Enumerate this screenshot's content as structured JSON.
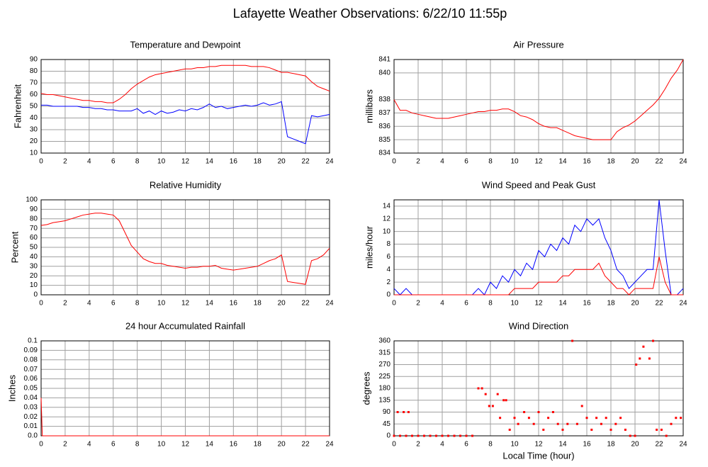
{
  "title": "Lafayette Weather Observations: 6/22/10 11:55p",
  "chart_data": [
    {
      "type": "line",
      "title": "Temperature and Dewpoint",
      "ylabel": "Fahrenheit",
      "xlim": [
        0,
        24
      ],
      "xticks": [
        0,
        2,
        4,
        6,
        8,
        10,
        12,
        14,
        16,
        18,
        20,
        22,
        24
      ],
      "ylim": [
        10,
        90
      ],
      "yticks": [
        10,
        20,
        30,
        40,
        50,
        60,
        70,
        80,
        90
      ],
      "grid": true,
      "x": [
        0,
        0.5,
        1,
        1.5,
        2,
        2.5,
        3,
        3.5,
        4,
        4.5,
        5,
        5.5,
        6,
        6.5,
        7,
        7.5,
        8,
        8.5,
        9,
        9.5,
        10,
        10.5,
        11,
        11.5,
        12,
        12.5,
        13,
        13.5,
        14,
        14.5,
        15,
        15.5,
        16,
        16.5,
        17,
        17.5,
        18,
        18.5,
        19,
        19.5,
        20,
        20.5,
        21,
        21.5,
        22,
        22.5,
        23,
        23.5,
        24
      ],
      "series": [
        {
          "color": "#ff0000",
          "values": [
            61,
            60,
            60,
            59,
            58,
            57,
            56,
            55,
            55,
            54,
            54,
            53,
            53,
            56,
            60,
            65,
            69,
            72,
            75,
            77,
            78,
            79,
            80,
            81,
            82,
            82,
            83,
            83,
            84,
            84,
            85,
            85,
            85,
            85,
            85,
            84,
            84,
            84,
            83,
            81,
            79,
            79,
            78,
            77,
            76,
            71,
            67,
            65,
            63
          ]
        },
        {
          "color": "#0000ff",
          "values": [
            51,
            51,
            50,
            50,
            50,
            50,
            50,
            49,
            49,
            48,
            48,
            47,
            47,
            46,
            46,
            46,
            48,
            44,
            46,
            43,
            46,
            44,
            45,
            47,
            46,
            48,
            47,
            49,
            52,
            49,
            50,
            48,
            49,
            50,
            51,
            50,
            51,
            53,
            51,
            52,
            54,
            24,
            22,
            20,
            18,
            42,
            41,
            42,
            43
          ]
        }
      ]
    },
    {
      "type": "line",
      "title": "Air Pressure",
      "ylabel": "millibars",
      "xlim": [
        0,
        24
      ],
      "xticks": [
        0,
        2,
        4,
        6,
        8,
        10,
        12,
        14,
        16,
        18,
        20,
        22,
        24
      ],
      "ylim": [
        834,
        841
      ],
      "yticks": [
        834,
        835,
        836,
        837,
        838,
        840,
        841
      ],
      "grid": true,
      "x": [
        0,
        0.5,
        1,
        1.5,
        2,
        2.5,
        3,
        3.5,
        4,
        4.5,
        5,
        5.5,
        6,
        6.5,
        7,
        7.5,
        8,
        8.5,
        9,
        9.5,
        10,
        10.5,
        11,
        11.5,
        12,
        12.5,
        13,
        13.5,
        14,
        14.5,
        15,
        15.5,
        16,
        16.5,
        17,
        17.5,
        18,
        18.5,
        19,
        19.5,
        20,
        20.5,
        21,
        21.5,
        22,
        22.5,
        23,
        23.5,
        24
      ],
      "series": [
        {
          "color": "#ff0000",
          "values": [
            838,
            837.2,
            837.2,
            837,
            836.9,
            836.8,
            836.7,
            836.6,
            836.6,
            836.6,
            836.7,
            836.8,
            836.9,
            837,
            837.1,
            837.1,
            837.2,
            837.2,
            837.3,
            837.3,
            837.1,
            836.8,
            836.7,
            836.5,
            836.2,
            836,
            835.9,
            835.9,
            835.7,
            835.5,
            835.3,
            835.2,
            835.1,
            835,
            835,
            835,
            835,
            835.6,
            835.9,
            836.1,
            836.4,
            836.8,
            837.2,
            837.6,
            838.1,
            838.8,
            839.6,
            840.2,
            841
          ]
        }
      ]
    },
    {
      "type": "line",
      "title": "Relative Humidity",
      "ylabel": "Percent",
      "xlim": [
        0,
        24
      ],
      "xticks": [
        0,
        2,
        4,
        6,
        8,
        10,
        12,
        14,
        16,
        18,
        20,
        22,
        24
      ],
      "ylim": [
        0,
        100
      ],
      "yticks": [
        0,
        10,
        20,
        30,
        40,
        50,
        60,
        70,
        80,
        90,
        100
      ],
      "grid": true,
      "x": [
        0,
        0.5,
        1,
        1.5,
        2,
        2.5,
        3,
        3.5,
        4,
        4.5,
        5,
        5.5,
        6,
        6.5,
        7,
        7.5,
        8,
        8.5,
        9,
        9.5,
        10,
        10.5,
        11,
        11.5,
        12,
        12.5,
        13,
        13.5,
        14,
        14.5,
        15,
        15.5,
        16,
        16.5,
        17,
        17.5,
        18,
        18.5,
        19,
        19.5,
        20,
        20.5,
        21,
        21.5,
        22,
        22.5,
        23,
        23.5,
        24
      ],
      "series": [
        {
          "color": "#ff0000",
          "values": [
            73,
            74,
            76,
            77,
            78,
            80,
            82,
            84,
            85,
            86,
            86,
            85,
            84,
            78,
            65,
            52,
            45,
            38,
            35,
            33,
            33,
            31,
            30,
            29,
            28,
            29,
            29,
            30,
            30,
            31,
            28,
            27,
            26,
            27,
            28,
            29,
            30,
            33,
            36,
            38,
            42,
            14,
            13,
            12,
            11,
            36,
            38,
            42,
            49
          ]
        }
      ]
    },
    {
      "type": "line",
      "title": "Wind Speed and Peak Gust",
      "ylabel": "miles/hour",
      "xlim": [
        0,
        24
      ],
      "xticks": [
        0,
        2,
        4,
        6,
        8,
        10,
        12,
        14,
        16,
        18,
        20,
        22,
        24
      ],
      "ylim": [
        0,
        15
      ],
      "yticks": [
        0,
        2,
        4,
        6,
        8,
        10,
        12,
        14
      ],
      "grid": true,
      "x": [
        0,
        0.5,
        1,
        1.5,
        2,
        2.5,
        3,
        3.5,
        4,
        4.5,
        5,
        5.5,
        6,
        6.5,
        7,
        7.5,
        8,
        8.5,
        9,
        9.5,
        10,
        10.5,
        11,
        11.5,
        12,
        12.5,
        13,
        13.5,
        14,
        14.5,
        15,
        15.5,
        16,
        16.5,
        17,
        17.5,
        18,
        18.5,
        19,
        19.5,
        20,
        20.5,
        21,
        21.5,
        22,
        22.5,
        23,
        23.5,
        24
      ],
      "series": [
        {
          "color": "#0000ff",
          "values": [
            1,
            0,
            1,
            0,
            0,
            0,
            0,
            0,
            0,
            0,
            0,
            0,
            0,
            0,
            1,
            0,
            2,
            1,
            3,
            2,
            4,
            3,
            5,
            4,
            7,
            6,
            8,
            7,
            9,
            8,
            11,
            10,
            12,
            11,
            12,
            9,
            7,
            4,
            3,
            1,
            2,
            3,
            4,
            4,
            15,
            7,
            0,
            0,
            1
          ]
        },
        {
          "color": "#ff0000",
          "values": [
            0,
            0,
            0,
            0,
            0,
            0,
            0,
            0,
            0,
            0,
            0,
            0,
            0,
            0,
            0,
            0,
            0,
            0,
            0,
            0,
            1,
            1,
            1,
            1,
            2,
            2,
            2,
            2,
            3,
            3,
            4,
            4,
            4,
            4,
            5,
            3,
            2,
            1,
            1,
            0,
            1,
            1,
            1,
            1,
            6,
            2,
            0,
            0,
            0
          ]
        }
      ]
    },
    {
      "type": "line",
      "title": "24 hour Accumulated Rainfall",
      "ylabel": "Inches",
      "xlim": [
        0,
        24
      ],
      "xticks": [
        0,
        2,
        4,
        6,
        8,
        10,
        12,
        14,
        16,
        18,
        20,
        22,
        24
      ],
      "ylim": [
        0,
        0.1
      ],
      "yticks": [
        {
          "value": 0,
          "label": "0.0"
        },
        0.01,
        0.02,
        0.03,
        0.04,
        0.05,
        0.06,
        0.07,
        0.08,
        0.09,
        0.1
      ],
      "grid": true,
      "x": [
        0,
        0.1,
        24
      ],
      "series": [
        {
          "color": "#ff0000",
          "values": [
            0.04,
            0,
            0
          ]
        }
      ]
    },
    {
      "type": "scatter",
      "title": "Wind Direction",
      "ylabel": "degrees",
      "xlabel": "Local Time (hour)",
      "xlim": [
        0,
        24
      ],
      "xticks": [
        0,
        2,
        4,
        6,
        8,
        10,
        12,
        14,
        16,
        18,
        20,
        22,
        24
      ],
      "ylim": [
        0,
        360
      ],
      "yticks": [
        0,
        45,
        90,
        135,
        180,
        225,
        270,
        315,
        360
      ],
      "grid": true,
      "color": "#ff0000",
      "x": [
        0,
        0.5,
        1,
        1.5,
        2,
        2.5,
        3,
        3.5,
        4,
        4.5,
        5,
        5.5,
        6,
        6.5,
        0.3,
        0.8,
        1.2,
        7,
        7.3,
        7.6,
        7.9,
        8.2,
        8.6,
        8.8,
        9.1,
        9.3,
        9.6,
        10,
        10.3,
        10.8,
        11.2,
        11.6,
        12,
        12.4,
        12.8,
        13.2,
        13.6,
        14,
        14.4,
        14.8,
        15.2,
        15.6,
        16,
        16.4,
        16.8,
        17.2,
        17.6,
        18,
        18.4,
        18.8,
        19.2,
        19.6,
        20,
        20.1,
        20.4,
        20.7,
        21.2,
        21.5,
        21.8,
        22.2,
        22.6,
        23,
        23.4,
        23.8
      ],
      "values": [
        0,
        0,
        0,
        0,
        0,
        0,
        0,
        0,
        0,
        0,
        0,
        0,
        0,
        0,
        90,
        90,
        90,
        180,
        180,
        158,
        113,
        113,
        158,
        68,
        135,
        135,
        23,
        68,
        45,
        90,
        68,
        45,
        90,
        23,
        68,
        90,
        45,
        23,
        45,
        360,
        45,
        113,
        68,
        23,
        68,
        45,
        68,
        23,
        45,
        68,
        23,
        0,
        0,
        270,
        293,
        338,
        293,
        360,
        23,
        23,
        0,
        45,
        68,
        68
      ]
    }
  ]
}
